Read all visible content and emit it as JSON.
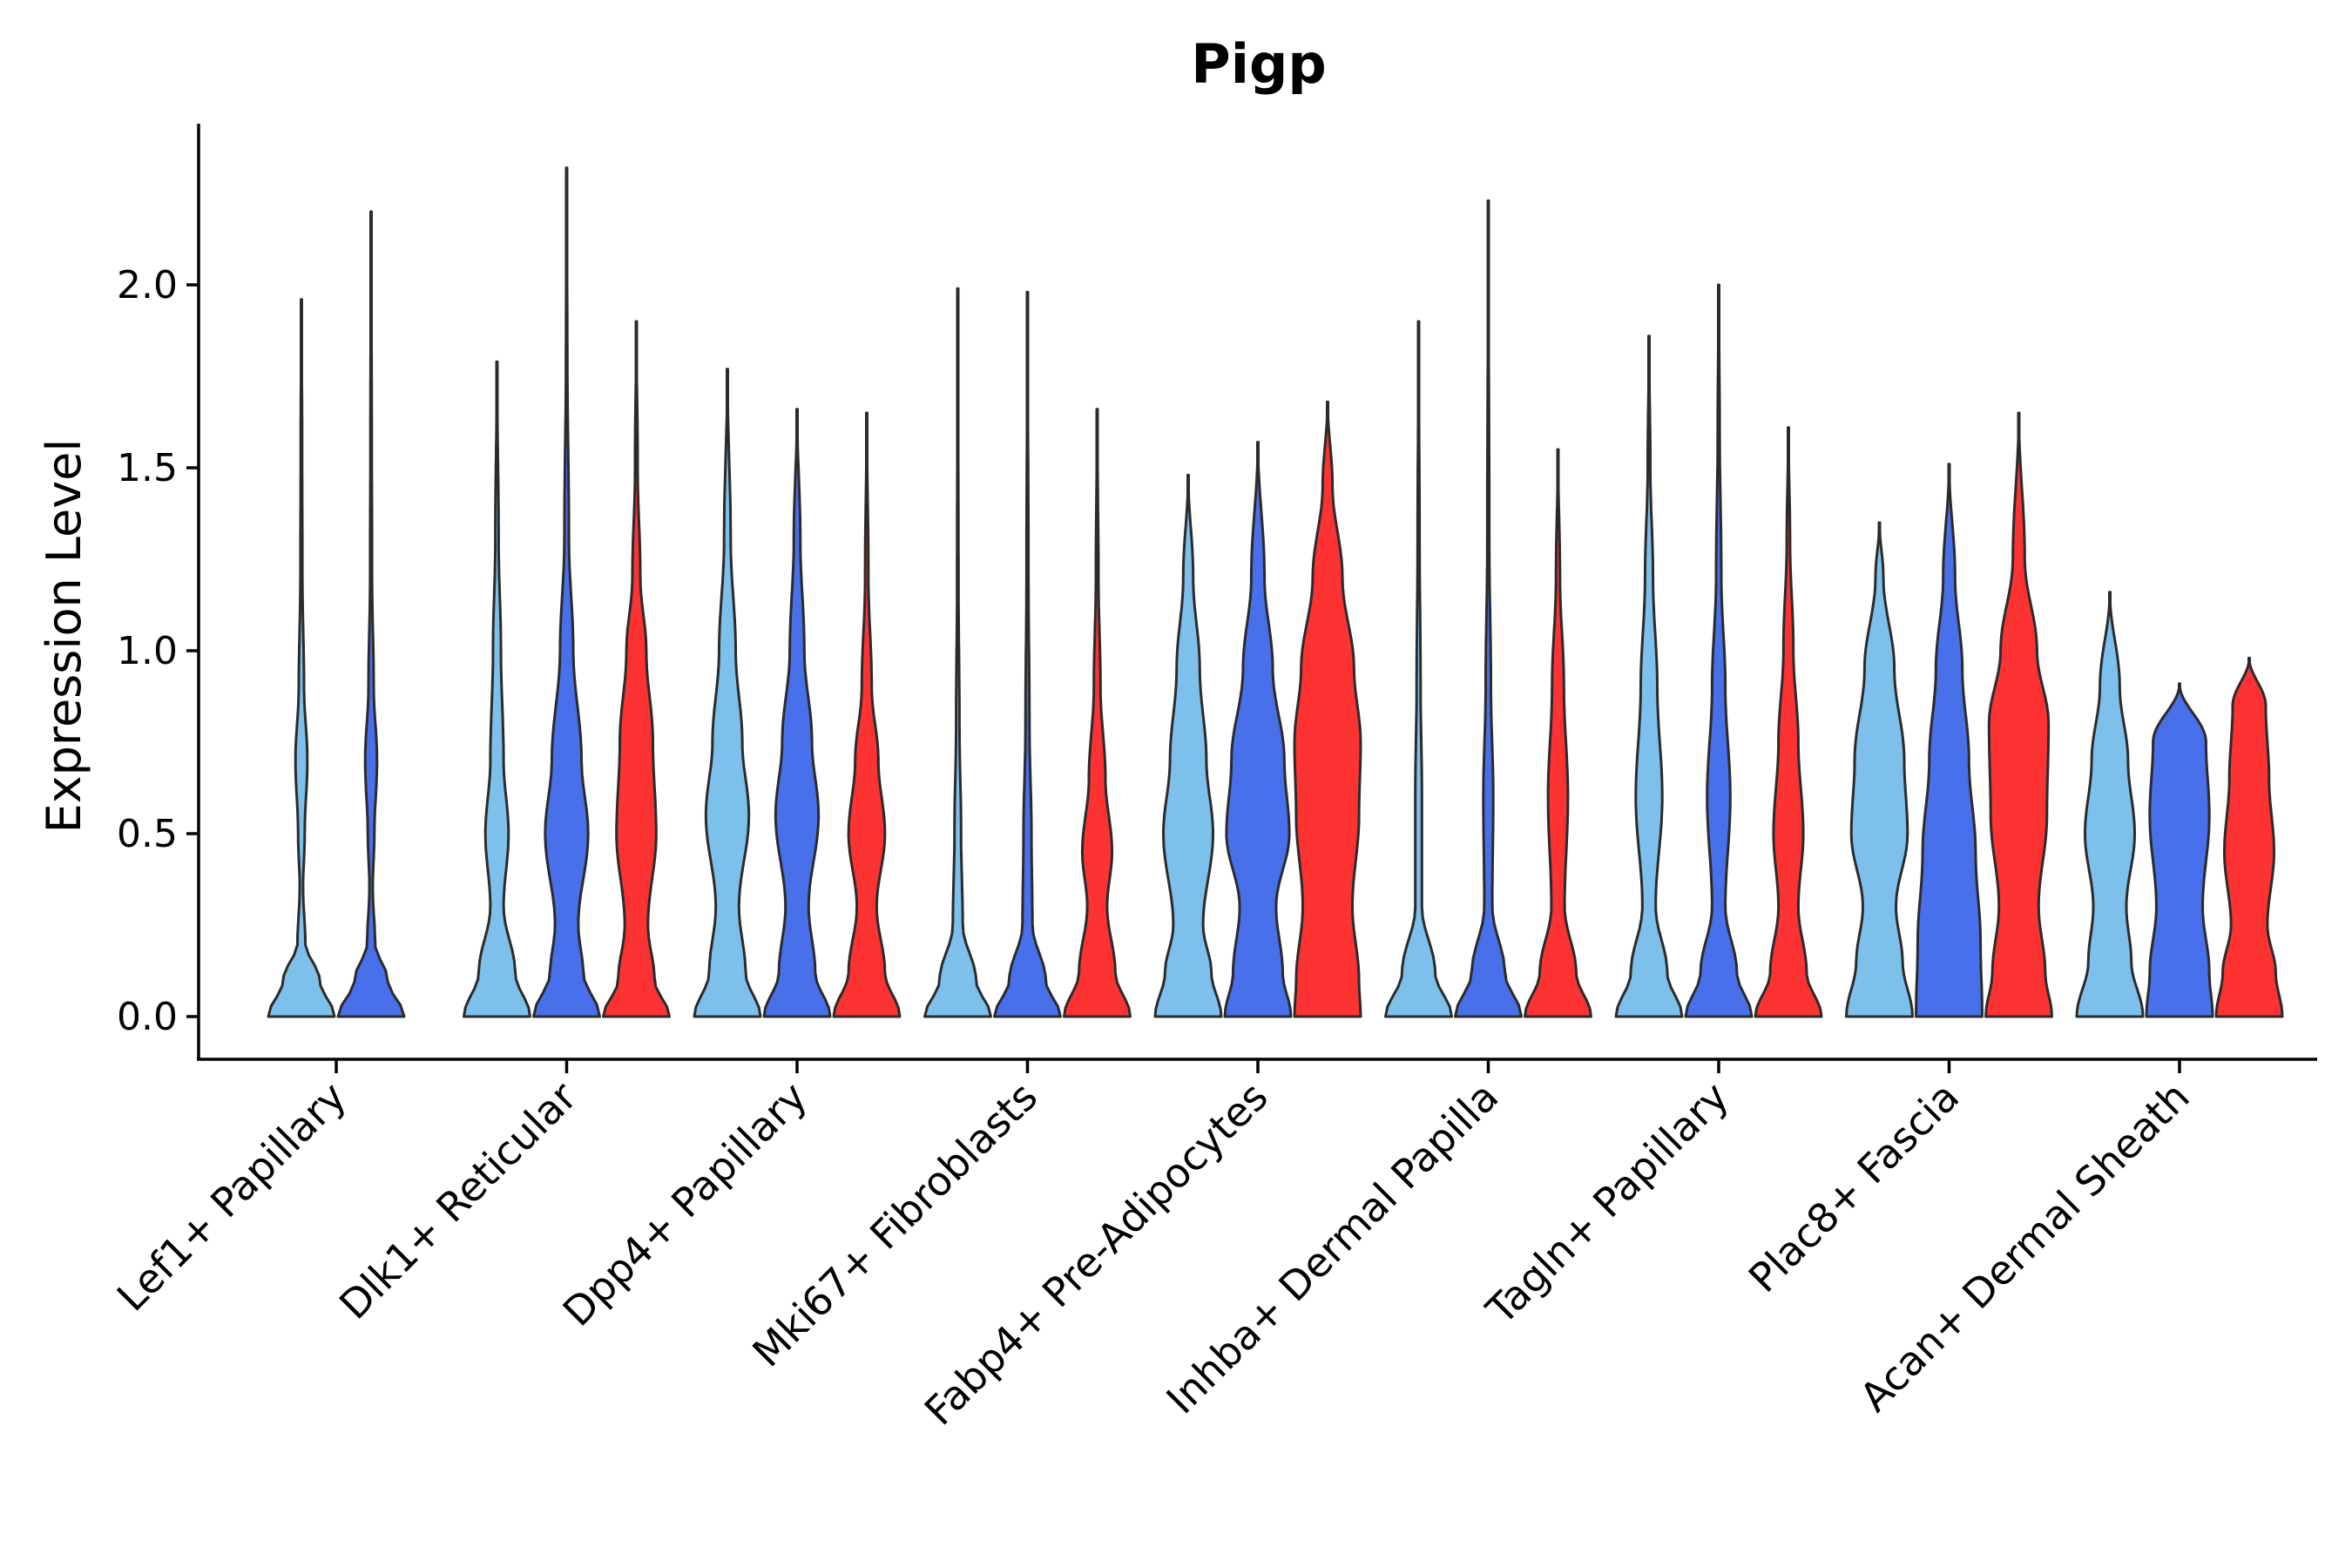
{
  "chart_data": {
    "type": "violin",
    "title": "Pigp",
    "xlabel": "",
    "ylabel": "Expression Level",
    "ylim": [
      -0.12,
      2.45
    ],
    "yticks": [
      {
        "value": 0.0,
        "label": "0.0"
      },
      {
        "value": 0.5,
        "label": "0.5"
      },
      {
        "value": 1.0,
        "label": "1.0"
      },
      {
        "value": 1.5,
        "label": "1.5"
      },
      {
        "value": 2.0,
        "label": "2.0"
      }
    ],
    "series_colors": {
      "light_blue": "#7ec0ec",
      "blue": "#4870ea",
      "red": "#fd3232"
    },
    "categories": [
      {
        "label": "Lef1+ Papillary",
        "violins": [
          {
            "color": "light_blue",
            "max": 1.96,
            "profile": [
              [
                0,
                1.0
              ],
              [
                0.1,
                0.55
              ],
              [
                0.2,
                0.12
              ],
              [
                0.35,
                0.05
              ],
              [
                0.5,
                0.1
              ],
              [
                0.7,
                0.18
              ],
              [
                0.9,
                0.08
              ],
              [
                1.2,
                0.03
              ],
              [
                1.6,
                0.02
              ],
              [
                1.96,
                0.0
              ]
            ]
          },
          {
            "color": "blue",
            "max": 2.2,
            "profile": [
              [
                0,
                1.0
              ],
              [
                0.1,
                0.5
              ],
              [
                0.2,
                0.12
              ],
              [
                0.35,
                0.05
              ],
              [
                0.5,
                0.1
              ],
              [
                0.7,
                0.18
              ],
              [
                0.9,
                0.08
              ],
              [
                1.2,
                0.03
              ],
              [
                1.6,
                0.02
              ],
              [
                2.2,
                0.0
              ]
            ]
          }
        ]
      },
      {
        "label": "Dlk1+ Reticular",
        "violins": [
          {
            "color": "light_blue",
            "max": 1.79,
            "profile": [
              [
                0,
                1.0
              ],
              [
                0.12,
                0.55
              ],
              [
                0.3,
                0.2
              ],
              [
                0.5,
                0.35
              ],
              [
                0.7,
                0.2
              ],
              [
                1.0,
                0.12
              ],
              [
                1.3,
                0.05
              ],
              [
                1.79,
                0.0
              ]
            ]
          },
          {
            "color": "blue",
            "max": 2.32,
            "profile": [
              [
                0,
                1.0
              ],
              [
                0.12,
                0.5
              ],
              [
                0.25,
                0.35
              ],
              [
                0.5,
                0.65
              ],
              [
                0.7,
                0.45
              ],
              [
                1.0,
                0.2
              ],
              [
                1.3,
                0.07
              ],
              [
                1.8,
                0.02
              ],
              [
                2.32,
                0.0
              ]
            ]
          },
          {
            "color": "red",
            "max": 1.9,
            "profile": [
              [
                0,
                1.0
              ],
              [
                0.1,
                0.55
              ],
              [
                0.25,
                0.35
              ],
              [
                0.5,
                0.6
              ],
              [
                0.75,
                0.5
              ],
              [
                1.0,
                0.3
              ],
              [
                1.2,
                0.12
              ],
              [
                1.5,
                0.04
              ],
              [
                1.9,
                0.0
              ]
            ]
          }
        ]
      },
      {
        "label": "Dpp4+ Papillary",
        "violins": [
          {
            "color": "light_blue",
            "max": 1.77,
            "profile": [
              [
                0,
                1.0
              ],
              [
                0.12,
                0.55
              ],
              [
                0.3,
                0.35
              ],
              [
                0.55,
                0.65
              ],
              [
                0.75,
                0.45
              ],
              [
                1.0,
                0.25
              ],
              [
                1.3,
                0.1
              ],
              [
                1.77,
                0.0
              ]
            ]
          },
          {
            "color": "blue",
            "max": 1.66,
            "profile": [
              [
                0,
                1.0
              ],
              [
                0.12,
                0.55
              ],
              [
                0.3,
                0.35
              ],
              [
                0.55,
                0.65
              ],
              [
                0.75,
                0.45
              ],
              [
                1.0,
                0.22
              ],
              [
                1.3,
                0.1
              ],
              [
                1.66,
                0.0
              ]
            ]
          },
          {
            "color": "red",
            "max": 1.65,
            "profile": [
              [
                0,
                1.0
              ],
              [
                0.12,
                0.55
              ],
              [
                0.3,
                0.3
              ],
              [
                0.5,
                0.55
              ],
              [
                0.7,
                0.35
              ],
              [
                0.9,
                0.15
              ],
              [
                1.2,
                0.05
              ],
              [
                1.65,
                0.0
              ]
            ]
          }
        ]
      },
      {
        "label": "Mki67+ Fibroblasts",
        "violins": [
          {
            "color": "light_blue",
            "max": 1.99,
            "profile": [
              [
                0,
                1.0
              ],
              [
                0.1,
                0.55
              ],
              [
                0.25,
                0.15
              ],
              [
                0.5,
                0.1
              ],
              [
                0.8,
                0.05
              ],
              [
                1.2,
                0.02
              ],
              [
                1.99,
                0.0
              ]
            ]
          },
          {
            "color": "blue",
            "max": 1.98,
            "profile": [
              [
                0,
                1.0
              ],
              [
                0.1,
                0.55
              ],
              [
                0.25,
                0.15
              ],
              [
                0.5,
                0.12
              ],
              [
                0.8,
                0.06
              ],
              [
                1.2,
                0.03
              ],
              [
                1.98,
                0.0
              ]
            ]
          },
          {
            "color": "red",
            "max": 1.66,
            "profile": [
              [
                0,
                1.0
              ],
              [
                0.12,
                0.55
              ],
              [
                0.3,
                0.3
              ],
              [
                0.45,
                0.45
              ],
              [
                0.65,
                0.25
              ],
              [
                0.9,
                0.1
              ],
              [
                1.2,
                0.04
              ],
              [
                1.66,
                0.0
              ]
            ]
          }
        ]
      },
      {
        "label": "Fabp4+ Pre-Adipocytes",
        "violins": [
          {
            "color": "light_blue",
            "max": 1.48,
            "profile": [
              [
                0,
                1.0
              ],
              [
                0.12,
                0.7
              ],
              [
                0.25,
                0.45
              ],
              [
                0.5,
                0.75
              ],
              [
                0.7,
                0.55
              ],
              [
                0.95,
                0.35
              ],
              [
                1.2,
                0.15
              ],
              [
                1.48,
                0.0
              ]
            ]
          },
          {
            "color": "blue",
            "max": 1.57,
            "profile": [
              [
                0,
                1.0
              ],
              [
                0.12,
                0.75
              ],
              [
                0.3,
                0.55
              ],
              [
                0.5,
                0.95
              ],
              [
                0.7,
                0.8
              ],
              [
                0.95,
                0.45
              ],
              [
                1.2,
                0.2
              ],
              [
                1.57,
                0.0
              ]
            ]
          },
          {
            "color": "red",
            "max": 1.68,
            "profile": [
              [
                0,
                1.0
              ],
              [
                0.1,
                0.95
              ],
              [
                0.3,
                0.75
              ],
              [
                0.55,
                0.95
              ],
              [
                0.75,
                1.0
              ],
              [
                0.95,
                0.8
              ],
              [
                1.2,
                0.45
              ],
              [
                1.45,
                0.15
              ],
              [
                1.68,
                0.0
              ]
            ]
          }
        ]
      },
      {
        "label": "Inhba+ Dermal Papilla",
        "violins": [
          {
            "color": "light_blue",
            "max": 1.9,
            "profile": [
              [
                0,
                1.0
              ],
              [
                0.12,
                0.5
              ],
              [
                0.3,
                0.1
              ],
              [
                0.6,
                0.1
              ],
              [
                0.9,
                0.06
              ],
              [
                1.3,
                0.03
              ],
              [
                1.9,
                0.0
              ]
            ]
          },
          {
            "color": "blue",
            "max": 2.23,
            "profile": [
              [
                0,
                1.0
              ],
              [
                0.12,
                0.5
              ],
              [
                0.3,
                0.12
              ],
              [
                0.6,
                0.15
              ],
              [
                0.9,
                0.08
              ],
              [
                1.3,
                0.03
              ],
              [
                2.23,
                0.0
              ]
            ]
          },
          {
            "color": "red",
            "max": 1.55,
            "profile": [
              [
                0,
                1.0
              ],
              [
                0.12,
                0.55
              ],
              [
                0.3,
                0.2
              ],
              [
                0.6,
                0.3
              ],
              [
                0.9,
                0.18
              ],
              [
                1.2,
                0.06
              ],
              [
                1.55,
                0.0
              ]
            ]
          }
        ]
      },
      {
        "label": "Tagln+ Papillary",
        "violins": [
          {
            "color": "light_blue",
            "max": 1.86,
            "profile": [
              [
                0,
                1.0
              ],
              [
                0.12,
                0.55
              ],
              [
                0.3,
                0.2
              ],
              [
                0.6,
                0.4
              ],
              [
                0.9,
                0.25
              ],
              [
                1.2,
                0.12
              ],
              [
                1.5,
                0.04
              ],
              [
                1.86,
                0.0
              ]
            ]
          },
          {
            "color": "blue",
            "max": 2.0,
            "profile": [
              [
                0,
                1.0
              ],
              [
                0.12,
                0.55
              ],
              [
                0.3,
                0.2
              ],
              [
                0.6,
                0.35
              ],
              [
                0.9,
                0.2
              ],
              [
                1.2,
                0.08
              ],
              [
                1.6,
                0.03
              ],
              [
                2.0,
                0.0
              ]
            ]
          },
          {
            "color": "red",
            "max": 1.61,
            "profile": [
              [
                0,
                1.0
              ],
              [
                0.12,
                0.55
              ],
              [
                0.3,
                0.3
              ],
              [
                0.5,
                0.45
              ],
              [
                0.75,
                0.3
              ],
              [
                1.0,
                0.15
              ],
              [
                1.3,
                0.05
              ],
              [
                1.61,
                0.0
              ]
            ]
          }
        ]
      },
      {
        "label": "Plac8+ Fascia",
        "violins": [
          {
            "color": "light_blue",
            "max": 1.35,
            "profile": [
              [
                0,
                1.0
              ],
              [
                0.15,
                0.7
              ],
              [
                0.3,
                0.5
              ],
              [
                0.5,
                0.85
              ],
              [
                0.7,
                0.75
              ],
              [
                0.95,
                0.45
              ],
              [
                1.2,
                0.12
              ],
              [
                1.35,
                0.0
              ]
            ]
          },
          {
            "color": "blue",
            "max": 1.51,
            "profile": [
              [
                0,
                1.0
              ],
              [
                0.2,
                0.95
              ],
              [
                0.45,
                0.8
              ],
              [
                0.7,
                0.6
              ],
              [
                0.95,
                0.4
              ],
              [
                1.2,
                0.18
              ],
              [
                1.51,
                0.0
              ]
            ]
          },
          {
            "color": "red",
            "max": 1.65,
            "profile": [
              [
                0,
                1.0
              ],
              [
                0.12,
                0.8
              ],
              [
                0.3,
                0.6
              ],
              [
                0.55,
                0.85
              ],
              [
                0.8,
                0.9
              ],
              [
                1.0,
                0.55
              ],
              [
                1.25,
                0.18
              ],
              [
                1.65,
                0.0
              ]
            ]
          }
        ]
      },
      {
        "label": "Acan+ Dermal Sheath",
        "violins": [
          {
            "color": "light_blue",
            "max": 1.16,
            "profile": [
              [
                0,
                1.0
              ],
              [
                0.15,
                0.65
              ],
              [
                0.3,
                0.5
              ],
              [
                0.5,
                0.75
              ],
              [
                0.7,
                0.55
              ],
              [
                0.9,
                0.3
              ],
              [
                1.16,
                0.0
              ]
            ]
          },
          {
            "color": "blue",
            "max": 0.91,
            "profile": [
              [
                0,
                1.0
              ],
              [
                0.12,
                0.9
              ],
              [
                0.3,
                0.7
              ],
              [
                0.55,
                0.9
              ],
              [
                0.75,
                0.8
              ],
              [
                0.91,
                0.0
              ]
            ]
          },
          {
            "color": "red",
            "max": 0.98,
            "profile": [
              [
                0,
                1.0
              ],
              [
                0.12,
                0.8
              ],
              [
                0.25,
                0.55
              ],
              [
                0.45,
                0.75
              ],
              [
                0.65,
                0.6
              ],
              [
                0.85,
                0.5
              ],
              [
                0.98,
                0.0
              ]
            ]
          }
        ]
      }
    ]
  }
}
